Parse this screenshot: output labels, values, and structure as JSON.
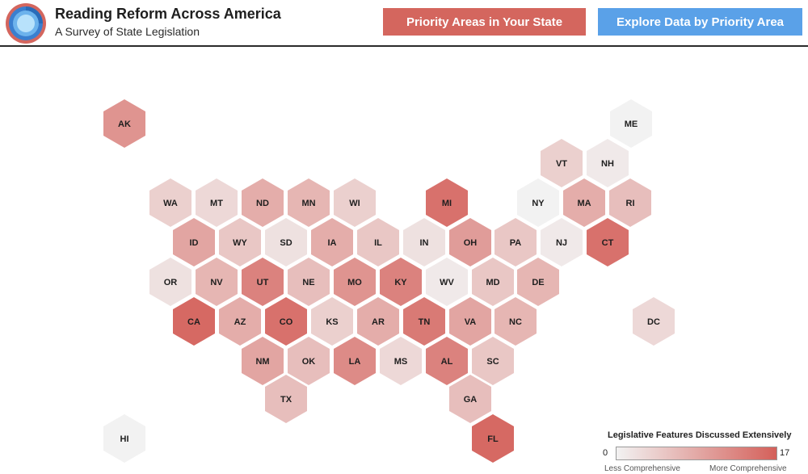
{
  "header": {
    "title": "Reading Reform Across America",
    "subtitle": "A Survey of State Legislation"
  },
  "buttons": {
    "state_label": "Priority Areas in Your State",
    "data_label": "Explore Data by Priority Area"
  },
  "legend": {
    "title": "Legislative Features Discussed Extensively",
    "min": "0",
    "max": "17",
    "low_label": "Less Comprehensive",
    "high_label": "More Comprehensive",
    "color_low": "#f2f2f2",
    "color_high": "#d4605a"
  },
  "states": [
    {
      "abbr": "AK",
      "value": 11
    },
    {
      "abbr": "ME",
      "value": 0
    },
    {
      "abbr": "VT",
      "value": 4
    },
    {
      "abbr": "NH",
      "value": 1
    },
    {
      "abbr": "WA",
      "value": 4
    },
    {
      "abbr": "MT",
      "value": 3
    },
    {
      "abbr": "ND",
      "value": 8
    },
    {
      "abbr": "MN",
      "value": 7
    },
    {
      "abbr": "WI",
      "value": 4
    },
    {
      "abbr": "MI",
      "value": 15
    },
    {
      "abbr": "NY",
      "value": 0
    },
    {
      "abbr": "MA",
      "value": 8
    },
    {
      "abbr": "RI",
      "value": 6
    },
    {
      "abbr": "ID",
      "value": 9
    },
    {
      "abbr": "WY",
      "value": 5
    },
    {
      "abbr": "SD",
      "value": 2
    },
    {
      "abbr": "IA",
      "value": 8
    },
    {
      "abbr": "IL",
      "value": 5
    },
    {
      "abbr": "IN",
      "value": 2
    },
    {
      "abbr": "OH",
      "value": 10
    },
    {
      "abbr": "PA",
      "value": 5
    },
    {
      "abbr": "NJ",
      "value": 1
    },
    {
      "abbr": "CT",
      "value": 15
    },
    {
      "abbr": "OR",
      "value": 2
    },
    {
      "abbr": "NV",
      "value": 7
    },
    {
      "abbr": "UT",
      "value": 13
    },
    {
      "abbr": "NE",
      "value": 6
    },
    {
      "abbr": "MO",
      "value": 11
    },
    {
      "abbr": "KY",
      "value": 13
    },
    {
      "abbr": "WV",
      "value": 1
    },
    {
      "abbr": "MD",
      "value": 5
    },
    {
      "abbr": "DE",
      "value": 7
    },
    {
      "abbr": "CA",
      "value": 16
    },
    {
      "abbr": "AZ",
      "value": 8
    },
    {
      "abbr": "CO",
      "value": 15
    },
    {
      "abbr": "KS",
      "value": 4
    },
    {
      "abbr": "AR",
      "value": 8
    },
    {
      "abbr": "TN",
      "value": 14
    },
    {
      "abbr": "VA",
      "value": 9
    },
    {
      "abbr": "NC",
      "value": 7
    },
    {
      "abbr": "DC",
      "value": 3
    },
    {
      "abbr": "NM",
      "value": 9
    },
    {
      "abbr": "OK",
      "value": 6
    },
    {
      "abbr": "LA",
      "value": 12
    },
    {
      "abbr": "MS",
      "value": 3
    },
    {
      "abbr": "AL",
      "value": 13
    },
    {
      "abbr": "SC",
      "value": 5
    },
    {
      "abbr": "TX",
      "value": 6
    },
    {
      "abbr": "GA",
      "value": 6
    },
    {
      "abbr": "HI",
      "value": 0
    },
    {
      "abbr": "FL",
      "value": 16
    }
  ]
}
